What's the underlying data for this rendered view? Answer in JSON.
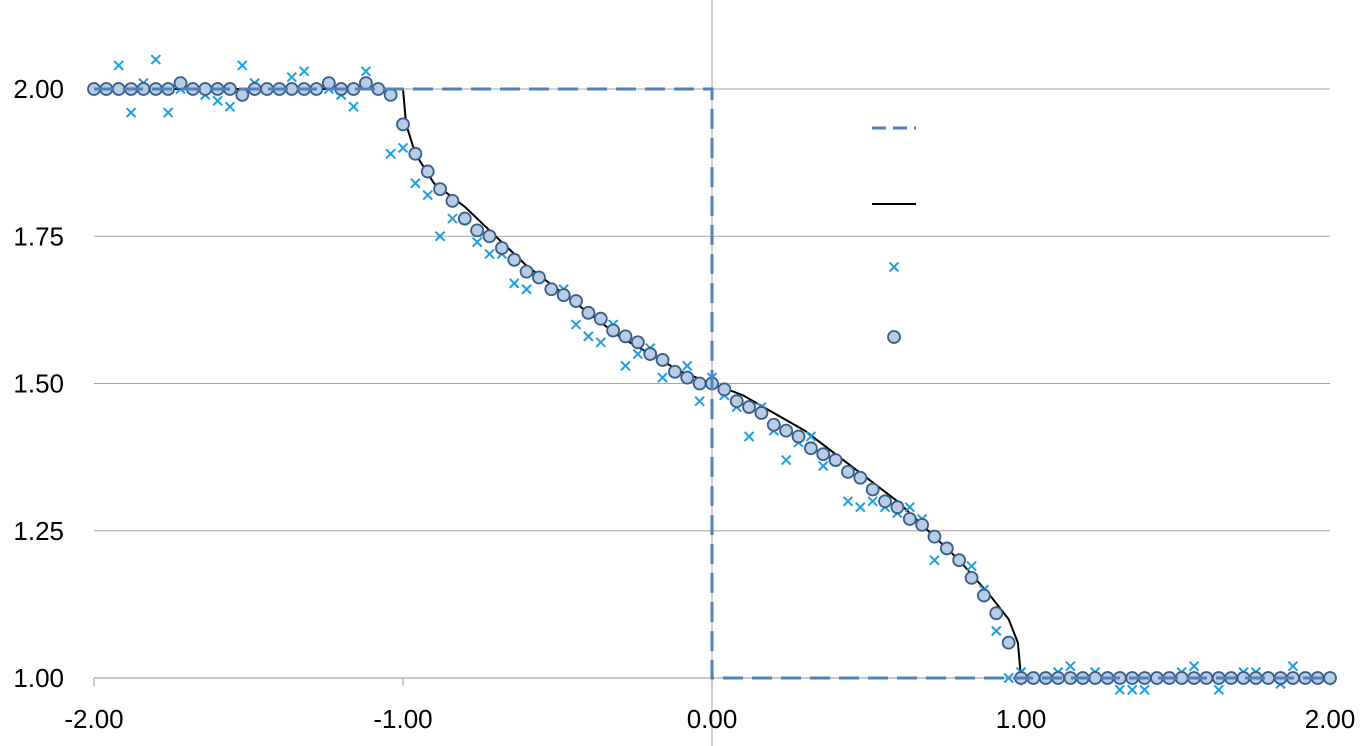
{
  "chart_data": {
    "type": "scatter",
    "xlim": [
      -2.0,
      2.0
    ],
    "ylim": [
      1.0,
      2.0
    ],
    "x_ticks": [
      "-2.00",
      "-1.00",
      "0.00",
      "1.00",
      "2.00"
    ],
    "y_ticks": [
      "1.00",
      "1.25",
      "1.50",
      "1.75",
      "2.00"
    ],
    "x_tick_values": [
      -2.0,
      -1.0,
      0.0,
      1.0,
      2.0
    ],
    "y_tick_values": [
      1.0,
      1.25,
      1.5,
      1.75,
      2.0
    ],
    "grid": "horizontal",
    "legend": {
      "placement": "right-of-center",
      "entries": [
        "",
        "",
        "",
        ""
      ]
    },
    "colors": {
      "initial_dashed": "#4f81bd",
      "exact_line": "#000000",
      "cross_markers": "#1ba1e2",
      "circle_fill": "#b8cce4",
      "circle_stroke": "#385d8a",
      "grid": "#a6a6a6",
      "axis": "#a6a6a6"
    },
    "series": [
      {
        "style": "dashed-line",
        "x": [
          -2.0,
          -1.0,
          0.0,
          0.0,
          1.0,
          2.0
        ],
        "y": [
          2.0,
          2.0,
          2.0,
          1.0,
          1.0,
          1.0
        ]
      },
      {
        "style": "solid-line",
        "x": [
          -2.0,
          -1.0,
          -0.99,
          -0.96,
          -0.9,
          -0.8,
          -0.7,
          -0.6,
          -0.5,
          -0.4,
          -0.3,
          -0.2,
          -0.1,
          0.0,
          0.1,
          0.2,
          0.3,
          0.4,
          0.5,
          0.6,
          0.7,
          0.8,
          0.9,
          0.96,
          0.99,
          1.0,
          2.0
        ],
        "y": [
          2.0,
          2.0,
          1.94,
          1.89,
          1.84,
          1.8,
          1.75,
          1.7,
          1.66,
          1.62,
          1.58,
          1.55,
          1.52,
          1.5,
          1.48,
          1.45,
          1.42,
          1.38,
          1.34,
          1.3,
          1.25,
          1.2,
          1.14,
          1.1,
          1.06,
          1.0,
          1.0
        ]
      },
      {
        "style": "cross-markers",
        "x": [
          -1.96,
          -1.92,
          -1.88,
          -1.84,
          -1.8,
          -1.76,
          -1.72,
          -1.68,
          -1.64,
          -1.6,
          -1.56,
          -1.52,
          -1.48,
          -1.44,
          -1.4,
          -1.36,
          -1.32,
          -1.28,
          -1.24,
          -1.2,
          -1.16,
          -1.12,
          -1.08,
          -1.04,
          -1.0,
          -0.96,
          -0.92,
          -0.88,
          -0.84,
          -0.8,
          -0.76,
          -0.72,
          -0.68,
          -0.64,
          -0.6,
          -0.56,
          -0.52,
          -0.48,
          -0.44,
          -0.4,
          -0.36,
          -0.32,
          -0.28,
          -0.24,
          -0.2,
          -0.16,
          -0.12,
          -0.08,
          -0.04,
          0.0,
          0.04,
          0.08,
          0.12,
          0.16,
          0.2,
          0.24,
          0.28,
          0.32,
          0.36,
          0.4,
          0.44,
          0.48,
          0.52,
          0.56,
          0.6,
          0.64,
          0.68,
          0.72,
          0.76,
          0.8,
          0.84,
          0.88,
          0.92,
          0.96,
          1.0,
          1.04,
          1.08,
          1.12,
          1.16,
          1.2,
          1.24,
          1.28,
          1.32,
          1.36,
          1.4,
          1.44,
          1.48,
          1.52,
          1.56,
          1.6,
          1.64,
          1.68,
          1.72,
          1.76,
          1.8,
          1.84,
          1.88,
          1.92,
          1.96
        ],
        "y": [
          2.0,
          2.04,
          1.96,
          2.01,
          2.05,
          1.96,
          2.0,
          2.0,
          1.99,
          1.98,
          1.97,
          2.04,
          2.01,
          2.0,
          2.0,
          2.02,
          2.03,
          2.0,
          2.0,
          1.99,
          1.97,
          2.03,
          2.0,
          1.89,
          1.9,
          1.84,
          1.82,
          1.75,
          1.78,
          1.78,
          1.74,
          1.72,
          1.72,
          1.67,
          1.66,
          1.68,
          1.66,
          1.66,
          1.6,
          1.58,
          1.57,
          1.6,
          1.53,
          1.55,
          1.56,
          1.51,
          1.52,
          1.53,
          1.47,
          1.51,
          1.48,
          1.46,
          1.41,
          1.46,
          1.42,
          1.37,
          1.4,
          1.41,
          1.36,
          1.37,
          1.3,
          1.29,
          1.3,
          1.29,
          1.28,
          1.29,
          1.27,
          1.2,
          1.22,
          1.2,
          1.19,
          1.15,
          1.08,
          1.0,
          1.01,
          1.0,
          1.0,
          1.01,
          1.02,
          1.0,
          1.01,
          1.0,
          0.98,
          0.98,
          0.98,
          1.0,
          1.0,
          1.01,
          1.02,
          1.0,
          0.98,
          1.0,
          1.01,
          1.01,
          1.0,
          0.99,
          1.02,
          1.0,
          1.0
        ]
      },
      {
        "style": "circle-markers",
        "x": [
          -2.0,
          -1.96,
          -1.92,
          -1.88,
          -1.84,
          -1.8,
          -1.76,
          -1.72,
          -1.68,
          -1.64,
          -1.6,
          -1.56,
          -1.52,
          -1.48,
          -1.44,
          -1.4,
          -1.36,
          -1.32,
          -1.28,
          -1.24,
          -1.2,
          -1.16,
          -1.12,
          -1.08,
          -1.04,
          -1.0,
          -0.96,
          -0.92,
          -0.88,
          -0.84,
          -0.8,
          -0.76,
          -0.72,
          -0.68,
          -0.64,
          -0.6,
          -0.56,
          -0.52,
          -0.48,
          -0.44,
          -0.4,
          -0.36,
          -0.32,
          -0.28,
          -0.24,
          -0.2,
          -0.16,
          -0.12,
          -0.08,
          -0.04,
          0.0,
          0.04,
          0.08,
          0.12,
          0.16,
          0.2,
          0.24,
          0.28,
          0.32,
          0.36,
          0.4,
          0.44,
          0.48,
          0.52,
          0.56,
          0.6,
          0.64,
          0.68,
          0.72,
          0.76,
          0.8,
          0.84,
          0.88,
          0.92,
          0.96,
          1.0,
          1.04,
          1.08,
          1.12,
          1.16,
          1.2,
          1.24,
          1.28,
          1.32,
          1.36,
          1.4,
          1.44,
          1.48,
          1.52,
          1.56,
          1.6,
          1.64,
          1.68,
          1.72,
          1.76,
          1.8,
          1.84,
          1.88,
          1.92,
          1.96,
          2.0
        ],
        "y": [
          2.0,
          2.0,
          2.0,
          2.0,
          2.0,
          2.0,
          2.0,
          2.01,
          2.0,
          2.0,
          2.0,
          2.0,
          1.99,
          2.0,
          2.0,
          2.0,
          2.0,
          2.0,
          2.0,
          2.01,
          2.0,
          2.0,
          2.01,
          2.0,
          1.99,
          1.94,
          1.89,
          1.86,
          1.83,
          1.81,
          1.78,
          1.76,
          1.75,
          1.73,
          1.71,
          1.69,
          1.68,
          1.66,
          1.65,
          1.64,
          1.62,
          1.61,
          1.59,
          1.58,
          1.57,
          1.55,
          1.54,
          1.52,
          1.51,
          1.5,
          1.5,
          1.49,
          1.47,
          1.46,
          1.45,
          1.43,
          1.42,
          1.41,
          1.39,
          1.38,
          1.37,
          1.35,
          1.34,
          1.32,
          1.3,
          1.29,
          1.27,
          1.26,
          1.24,
          1.22,
          1.2,
          1.17,
          1.14,
          1.11,
          1.06,
          1.0,
          1.0,
          1.0,
          1.0,
          1.0,
          1.0,
          1.0,
          1.0,
          1.0,
          1.0,
          1.0,
          1.0,
          1.0,
          1.0,
          1.0,
          1.0,
          1.0,
          1.0,
          1.0,
          1.0,
          1.0,
          1.0,
          1.0,
          1.0,
          1.0,
          1.0
        ]
      }
    ]
  }
}
